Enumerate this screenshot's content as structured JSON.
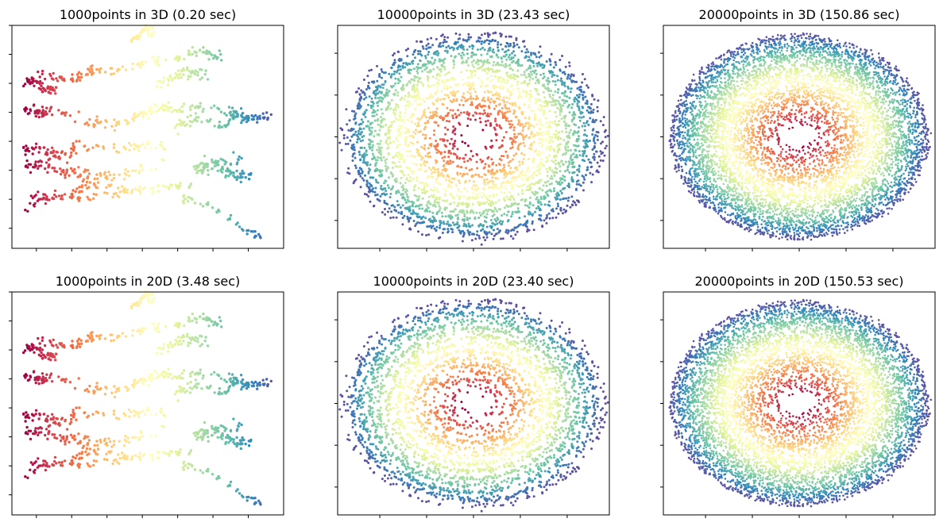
{
  "figure": {
    "layout": "2x3 grid",
    "colormap": "Spectral",
    "colormap_stops": [
      "#9e0142",
      "#d53e4f",
      "#f46d43",
      "#fdae61",
      "#fee08b",
      "#ffffbf",
      "#e6f598",
      "#abdda4",
      "#66c2a5",
      "#3288bd",
      "#5e4fa2"
    ],
    "point_color_alpha": 1.0
  },
  "chart_data": [
    {
      "type": "scatter",
      "title": "1000points in 3D (0.20 sec)",
      "n_points": 1000,
      "dimensions": 3,
      "time_sec": 0.2,
      "xlim": [
        0,
        1
      ],
      "ylim": [
        0,
        1
      ],
      "axis_ticks": true,
      "tick_labels": false,
      "pattern": "ribbon",
      "xticks": [
        0.09,
        0.22,
        0.35,
        0.48,
        0.61,
        0.74,
        0.87
      ],
      "yticks": [
        0.09,
        0.22,
        0.35,
        0.48,
        0.61,
        0.74,
        0.87,
        1.0
      ]
    },
    {
      "type": "scatter",
      "title": "10000points in 3D (23.43 sec)",
      "n_points": 10000,
      "dimensions": 3,
      "time_sec": 23.43,
      "xlim": [
        -1.45,
        1.45
      ],
      "ylim": [
        -1.0,
        1.0
      ],
      "axis_ticks": true,
      "tick_labels": false,
      "pattern": "rings",
      "xticks": [
        -1.0,
        -0.5,
        0.0,
        0.5,
        1.0
      ],
      "yticks": [
        -0.75,
        -0.375,
        0.0,
        0.375,
        0.75
      ]
    },
    {
      "type": "scatter",
      "title": "20000points in 3D (150.86 sec)",
      "n_points": 20000,
      "dimensions": 3,
      "time_sec": 150.86,
      "xlim": [
        -1.45,
        1.45
      ],
      "ylim": [
        -1.0,
        1.0
      ],
      "axis_ticks": true,
      "tick_labels": false,
      "pattern": "disk",
      "xticks": [
        -1.0,
        -0.5,
        0.0,
        0.5,
        1.0
      ],
      "yticks": [
        -0.75,
        -0.375,
        0.0,
        0.375,
        0.75
      ]
    },
    {
      "type": "scatter",
      "title": "1000points in 20D (3.48 sec)",
      "n_points": 1000,
      "dimensions": 20,
      "time_sec": 3.48,
      "xlim": [
        0,
        1
      ],
      "ylim": [
        0,
        1
      ],
      "axis_ticks": true,
      "tick_labels": false,
      "pattern": "ribbon",
      "xticks": [
        0.09,
        0.22,
        0.35,
        0.48,
        0.61,
        0.74,
        0.87
      ],
      "yticks": [
        0.09,
        0.22,
        0.35,
        0.48,
        0.61,
        0.74,
        0.87,
        1.0
      ]
    },
    {
      "type": "scatter",
      "title": "10000points in 20D (23.40 sec)",
      "n_points": 10000,
      "dimensions": 20,
      "time_sec": 23.4,
      "xlim": [
        -1.45,
        1.45
      ],
      "ylim": [
        -1.0,
        1.0
      ],
      "axis_ticks": true,
      "tick_labels": false,
      "pattern": "rings",
      "xticks": [
        -1.0,
        -0.5,
        0.0,
        0.5,
        1.0
      ],
      "yticks": [
        -0.75,
        -0.375,
        0.0,
        0.375,
        0.75
      ]
    },
    {
      "type": "scatter",
      "title": "20000points in 20D (150.53 sec)",
      "n_points": 20000,
      "dimensions": 20,
      "time_sec": 150.53,
      "xlim": [
        -1.45,
        1.45
      ],
      "ylim": [
        -1.0,
        1.0
      ],
      "axis_ticks": true,
      "tick_labels": false,
      "pattern": "disk",
      "xticks": [
        -1.0,
        -0.5,
        0.0,
        0.5,
        1.0
      ],
      "yticks": [
        -0.75,
        -0.375,
        0.0,
        0.375,
        0.75
      ]
    }
  ]
}
